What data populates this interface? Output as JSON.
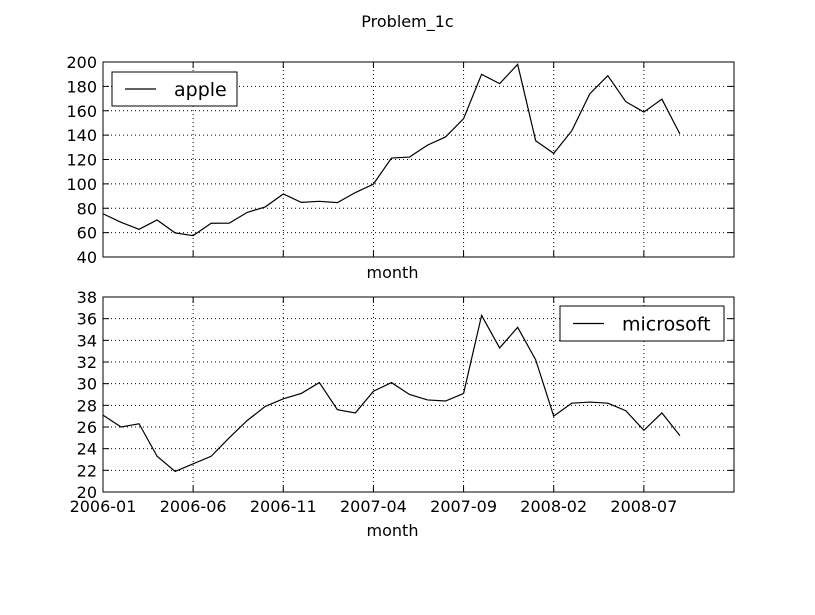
{
  "title": "Problem_1c",
  "x_tick_labels": [
    "2006-01",
    "2006-06",
    "2006-11",
    "2007-04",
    "2007-09",
    "2008-02",
    "2008-07"
  ],
  "chart_data": [
    {
      "type": "line",
      "title": "",
      "xlabel": "month",
      "ylabel": "",
      "x_start": "2006-01",
      "months": 33,
      "xlim": [
        "2006-01",
        "2008-12"
      ],
      "ylim": [
        40,
        200
      ],
      "yticks": [
        40,
        60,
        80,
        100,
        120,
        140,
        160,
        180,
        200
      ],
      "grid": true,
      "legend": "top-left",
      "series": [
        {
          "name": "apple",
          "color": "#000000",
          "values": [
            75.5,
            68.5,
            62.7,
            70.4,
            59.8,
            57.5,
            67.7,
            67.8,
            76.6,
            81.1,
            91.7,
            84.8,
            85.7,
            84.6,
            92.9,
            99.8,
            121.2,
            122.0,
            131.8,
            138.5,
            153.5,
            189.9,
            182.2,
            198.1,
            135.4,
            125.0,
            143.5,
            173.9,
            188.8,
            167.4,
            158.9,
            169.5,
            140.9
          ]
        }
      ]
    },
    {
      "type": "line",
      "title": "",
      "xlabel": "month",
      "ylabel": "",
      "x_start": "2006-01",
      "months": 33,
      "xlim": [
        "2006-01",
        "2008-12"
      ],
      "ylim": [
        20,
        38
      ],
      "yticks": [
        20,
        22,
        24,
        26,
        28,
        30,
        32,
        34,
        36,
        38
      ],
      "grid": true,
      "legend": "top-right",
      "series": [
        {
          "name": "microsoft",
          "color": "#000000",
          "values": [
            27.1,
            26.0,
            26.3,
            23.3,
            21.9,
            22.6,
            23.3,
            25.0,
            26.6,
            27.9,
            28.6,
            29.1,
            30.1,
            27.6,
            27.3,
            29.3,
            30.1,
            29.0,
            28.5,
            28.4,
            29.1,
            36.3,
            33.3,
            35.2,
            32.2,
            27.0,
            28.2,
            28.3,
            28.2,
            27.5,
            25.7,
            27.3,
            25.2
          ]
        }
      ]
    }
  ]
}
